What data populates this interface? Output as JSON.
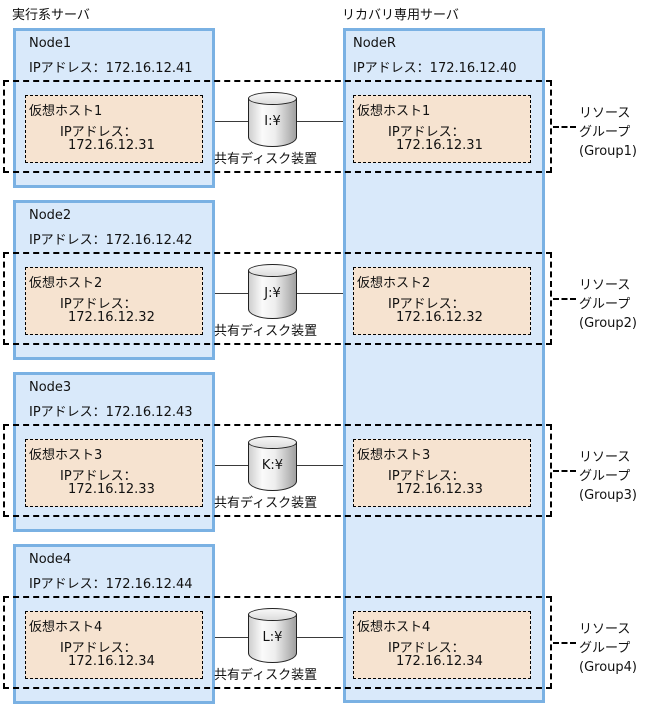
{
  "page": {
    "active_server_label": "実行系サーバ",
    "recovery_server_label": "リカバリ専用サーバ"
  },
  "recovery_server": {
    "name": "NodeR",
    "ip": "IPアドレス：172.16.12.40"
  },
  "colors": {
    "node_fill": "#d9e9fa",
    "node_border": "#7ab1e3",
    "vhost_fill": "#f6e3d0",
    "dash": "#000000",
    "line": "#3a3a3a"
  },
  "rows": [
    {
      "node": {
        "name": "Node1",
        "ip": "IPアドレス：172.16.12.41"
      },
      "active_vhost": {
        "name": "仮想ホスト1",
        "ip_label": "IPアドレス：",
        "ip": "172.16.12.31"
      },
      "disk": {
        "drive": "I:¥",
        "caption": "共有ディスク装置"
      },
      "recovery_vhost": {
        "name": "仮想ホスト1",
        "ip_label": "IPアドレス：",
        "ip": "172.16.12.31"
      },
      "resource_group": {
        "line1": "リソース",
        "line2": "グループ",
        "line3": "(Group1)"
      }
    },
    {
      "node": {
        "name": "Node2",
        "ip": "IPアドレス：172.16.12.42"
      },
      "active_vhost": {
        "name": "仮想ホスト2",
        "ip_label": "IPアドレス：",
        "ip": "172.16.12.32"
      },
      "disk": {
        "drive": "J:¥",
        "caption": "共有ディスク装置"
      },
      "recovery_vhost": {
        "name": "仮想ホスト2",
        "ip_label": "IPアドレス：",
        "ip": "172.16.12.32"
      },
      "resource_group": {
        "line1": "リソース",
        "line2": "グループ",
        "line3": "(Group2)"
      }
    },
    {
      "node": {
        "name": "Node3",
        "ip": "IPアドレス：172.16.12.43"
      },
      "active_vhost": {
        "name": "仮想ホスト3",
        "ip_label": "IPアドレス：",
        "ip": "172.16.12.33"
      },
      "disk": {
        "drive": "K:¥",
        "caption": "共有ディスク装置"
      },
      "recovery_vhost": {
        "name": "仮想ホスト3",
        "ip_label": "IPアドレス：",
        "ip": "172.16.12.33"
      },
      "resource_group": {
        "line1": "リソース",
        "line2": "グループ",
        "line3": "(Group3)"
      }
    },
    {
      "node": {
        "name": "Node4",
        "ip": "IPアドレス：172.16.12.44"
      },
      "active_vhost": {
        "name": "仮想ホスト4",
        "ip_label": "IPアドレス：",
        "ip": "172.16.12.34"
      },
      "disk": {
        "drive": "L:¥",
        "caption": "共有ディスク装置"
      },
      "recovery_vhost": {
        "name": "仮想ホスト4",
        "ip_label": "IPアドレス：",
        "ip": "172.16.12.34"
      },
      "resource_group": {
        "line1": "リソース",
        "line2": "グループ",
        "line3": "(Group4)"
      }
    }
  ]
}
